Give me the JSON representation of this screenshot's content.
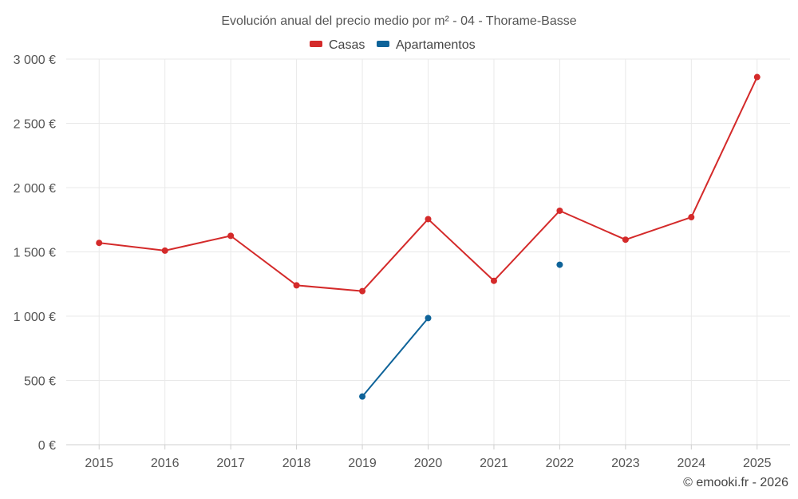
{
  "chart_data": {
    "type": "line",
    "title": "Evolución anual del precio medio por m² - 04 - Thorame-Basse",
    "categories": [
      "2015",
      "2016",
      "2017",
      "2018",
      "2019",
      "2020",
      "2021",
      "2022",
      "2023",
      "2024",
      "2025"
    ],
    "ylim": [
      0,
      3000
    ],
    "yticks": [
      0,
      500,
      1000,
      1500,
      2000,
      2500,
      3000
    ],
    "ytick_labels": [
      "0 €",
      "500 €",
      "1 000 €",
      "1 500 €",
      "2 000 €",
      "2 500 €",
      "3 000 €"
    ],
    "grid": true,
    "legend_position": "top-center",
    "series": [
      {
        "name": "Casas",
        "color": "#d42a2a",
        "values": [
          1570,
          1510,
          1625,
          1240,
          1195,
          1755,
          1275,
          1820,
          1595,
          1770,
          2860
        ]
      },
      {
        "name": "Apartamentos",
        "color": "#0e6399",
        "values": [
          null,
          null,
          null,
          null,
          375,
          985,
          null,
          1400,
          null,
          null,
          null
        ]
      }
    ]
  },
  "credit": "© emooki.fr - 2026"
}
